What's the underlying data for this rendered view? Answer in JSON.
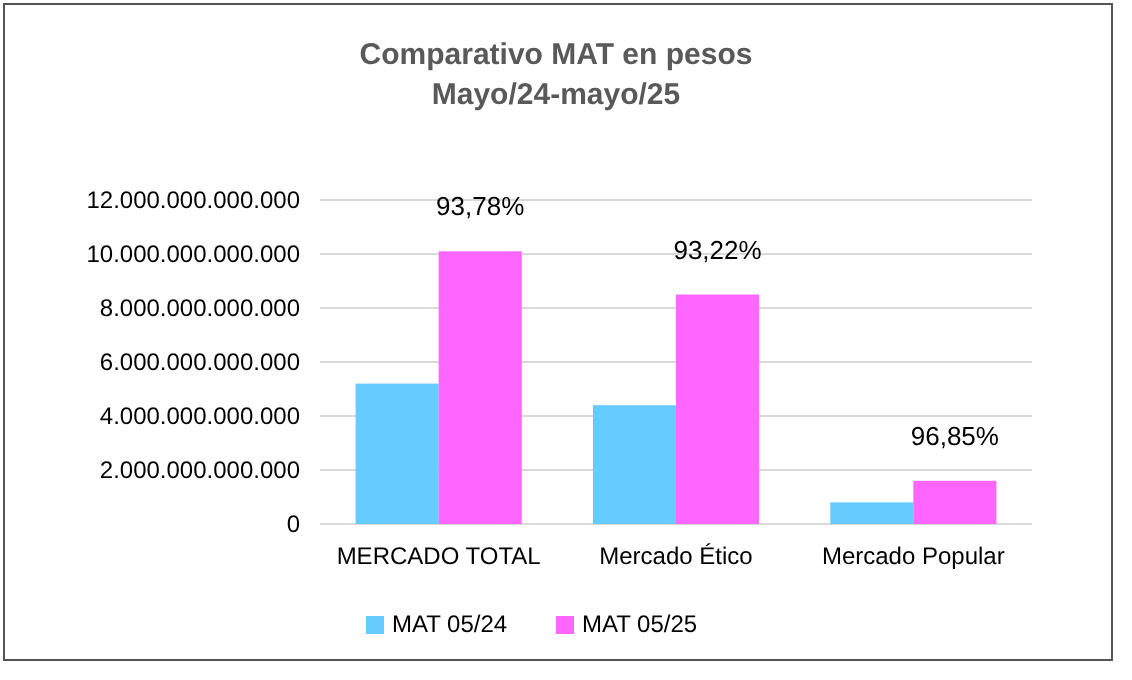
{
  "chart_data": {
    "type": "bar",
    "title": "Comparativo MAT en pesos",
    "subtitle": "Mayo/24-mayo/25",
    "categories": [
      "MERCADO TOTAL",
      "Mercado Ético",
      "Mercado Popular"
    ],
    "series": [
      {
        "name": "MAT 05/24",
        "color": "#66ccff",
        "values": [
          5200000000000,
          4400000000000,
          800000000000
        ]
      },
      {
        "name": "MAT 05/25",
        "color": "#ff66ff",
        "values": [
          10100000000000,
          8500000000000,
          1600000000000
        ]
      }
    ],
    "ylim": [
      0,
      12000000000000
    ],
    "yticks": [
      0,
      {
        "value": 2000000000000,
        "label": "2.000.000.000.000"
      },
      {
        "value": 4000000000000,
        "label": "4.000.000.000.000"
      },
      {
        "value": 6000000000000,
        "label": "6.000.000.000.000"
      },
      {
        "value": 8000000000000,
        "label": "8.000.000.000.000"
      },
      {
        "value": 10000000000000,
        "label": "10.000.000.000.000"
      },
      {
        "value": 12000000000000,
        "label": "12.000.000.000.000"
      }
    ],
    "annotations": [
      "93,78%",
      "93,22%",
      "96,85%"
    ],
    "grid": "y",
    "legend": "bottom"
  }
}
